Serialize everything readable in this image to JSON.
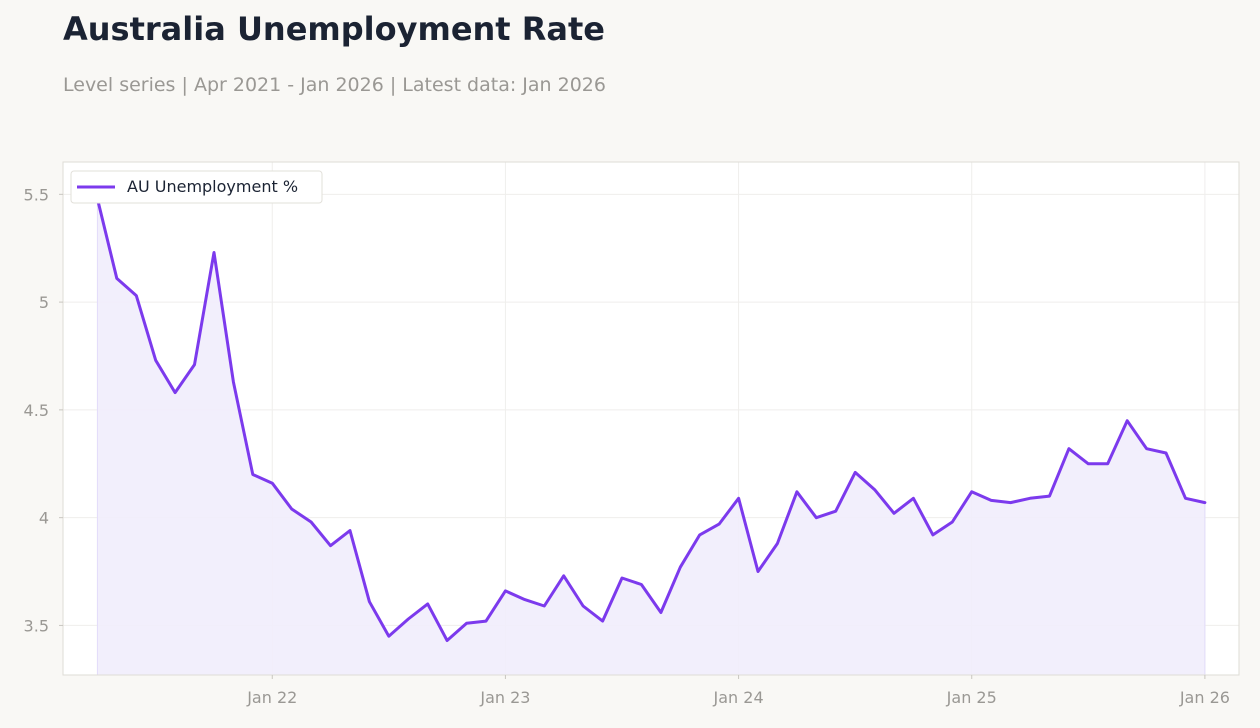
{
  "title": "Australia Unemployment Rate",
  "subtitle": "Level series | Apr 2021 - Jan 2026 | Latest data: Jan 2026",
  "colors": {
    "line": "#7c3aed",
    "fill": "#f1edfc",
    "background": "#f9f8f5",
    "plot_background": "#ffffff",
    "grid": "#efeeec",
    "text": "#1b2333",
    "muted_text": "#9a9894"
  },
  "chart_data": {
    "type": "area",
    "title": "Australia Unemployment Rate",
    "subtitle": "Level series | Apr 2021 - Jan 2026 | Latest data: Jan 2026",
    "xlabel": "",
    "ylabel": "",
    "x_tick_labels": [
      "Jan 22",
      "Jan 23",
      "Jan 24",
      "Jan 25",
      "Jan 26"
    ],
    "x_ticks": [
      "2022-01",
      "2023-01",
      "2024-01",
      "2025-01",
      "2026-01"
    ],
    "y_tick_labels": [
      "3.5",
      "4",
      "4.5",
      "5",
      "5.5"
    ],
    "y_ticks": [
      3.5,
      4.0,
      4.5,
      5.0,
      5.5
    ],
    "ylim": [
      3.27,
      5.65
    ],
    "xlim": [
      "2021-02-08",
      "2026-02-24"
    ],
    "grid": true,
    "legend": "top-left",
    "series": [
      {
        "name": "AU Unemployment %",
        "x": [
          "2021-04",
          "2021-05",
          "2021-06",
          "2021-07",
          "2021-08",
          "2021-09",
          "2021-10",
          "2021-11",
          "2021-12",
          "2022-01",
          "2022-02",
          "2022-03",
          "2022-04",
          "2022-05",
          "2022-06",
          "2022-07",
          "2022-08",
          "2022-09",
          "2022-10",
          "2022-11",
          "2022-12",
          "2023-01",
          "2023-02",
          "2023-03",
          "2023-04",
          "2023-05",
          "2023-06",
          "2023-07",
          "2023-08",
          "2023-09",
          "2023-10",
          "2023-11",
          "2023-12",
          "2024-01",
          "2024-02",
          "2024-03",
          "2024-04",
          "2024-05",
          "2024-06",
          "2024-07",
          "2024-08",
          "2024-09",
          "2024-10",
          "2024-11",
          "2024-12",
          "2025-01",
          "2025-02",
          "2025-03",
          "2025-04",
          "2025-05",
          "2025-06",
          "2025-07",
          "2025-08",
          "2025-09",
          "2025-10",
          "2025-11",
          "2025-12",
          "2026-01"
        ],
        "values": [
          5.48,
          5.11,
          5.03,
          4.73,
          4.58,
          4.71,
          5.23,
          4.63,
          4.2,
          4.16,
          4.04,
          3.98,
          3.87,
          3.94,
          3.61,
          3.45,
          3.53,
          3.6,
          3.43,
          3.51,
          3.52,
          3.66,
          3.62,
          3.59,
          3.73,
          3.59,
          3.52,
          3.72,
          3.69,
          3.56,
          3.77,
          3.92,
          3.97,
          4.09,
          3.75,
          3.88,
          4.12,
          4.0,
          4.03,
          4.21,
          4.13,
          4.02,
          4.09,
          3.92,
          3.98,
          4.12,
          4.08,
          4.07,
          4.09,
          4.1,
          4.32,
          4.25,
          4.25,
          4.45,
          4.32,
          4.3,
          4.09,
          4.07
        ]
      }
    ]
  }
}
